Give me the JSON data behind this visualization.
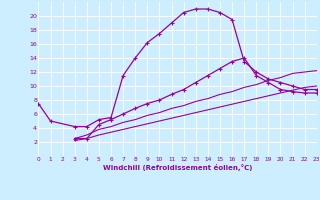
{
  "bg_color": "#cceeff",
  "line_color": "#990099",
  "xlabel": "Windchill (Refroidissement éolien,°C)",
  "xlim": [
    0,
    23
  ],
  "ylim": [
    0,
    22
  ],
  "xticks": [
    0,
    1,
    2,
    3,
    4,
    5,
    6,
    7,
    8,
    9,
    10,
    11,
    12,
    13,
    14,
    15,
    16,
    17,
    18,
    19,
    20,
    21,
    22,
    23
  ],
  "yticks": [
    2,
    4,
    6,
    8,
    10,
    12,
    14,
    16,
    18,
    20
  ],
  "s1_x": [
    0,
    1,
    3,
    4,
    5,
    6,
    7,
    8,
    9,
    10,
    11,
    12,
    13,
    14,
    15,
    16,
    17,
    18,
    19,
    20,
    21,
    22,
    23
  ],
  "s1_y": [
    7.5,
    5.0,
    4.2,
    4.2,
    5.2,
    5.5,
    11.5,
    14.0,
    16.2,
    17.5,
    19.0,
    20.5,
    21.0,
    21.0,
    20.5,
    19.5,
    13.5,
    12.0,
    11.0,
    10.5,
    10.0,
    9.5,
    9.5
  ],
  "s2_x": [
    3,
    4,
    5,
    6,
    7,
    8,
    9,
    10,
    11,
    12,
    13,
    14,
    15,
    16,
    17,
    18,
    19,
    20,
    21,
    22,
    23
  ],
  "s2_y": [
    2.5,
    2.5,
    4.5,
    5.2,
    6.0,
    6.8,
    7.5,
    8.0,
    8.8,
    9.5,
    10.5,
    11.5,
    12.5,
    13.5,
    14.0,
    11.5,
    10.5,
    9.5,
    9.2,
    9.0,
    9.0
  ],
  "s3_x": [
    3,
    4,
    5,
    6,
    7,
    8,
    9,
    10,
    11,
    12,
    13,
    14,
    15,
    16,
    17,
    18,
    19,
    20,
    21,
    22,
    23
  ],
  "s3_y": [
    2.5,
    3.0,
    3.8,
    4.2,
    4.8,
    5.2,
    5.8,
    6.2,
    6.8,
    7.2,
    7.8,
    8.2,
    8.8,
    9.2,
    9.8,
    10.2,
    10.8,
    11.2,
    11.8,
    12.0,
    12.2
  ],
  "s4_x": [
    3,
    4,
    5,
    6,
    7,
    8,
    9,
    10,
    11,
    12,
    13,
    14,
    15,
    16,
    17,
    18,
    19,
    20,
    21,
    22,
    23
  ],
  "s4_y": [
    2.2,
    2.5,
    3.0,
    3.4,
    3.8,
    4.2,
    4.6,
    5.0,
    5.4,
    5.8,
    6.2,
    6.6,
    7.0,
    7.4,
    7.8,
    8.2,
    8.6,
    9.0,
    9.4,
    9.8,
    10.0
  ]
}
